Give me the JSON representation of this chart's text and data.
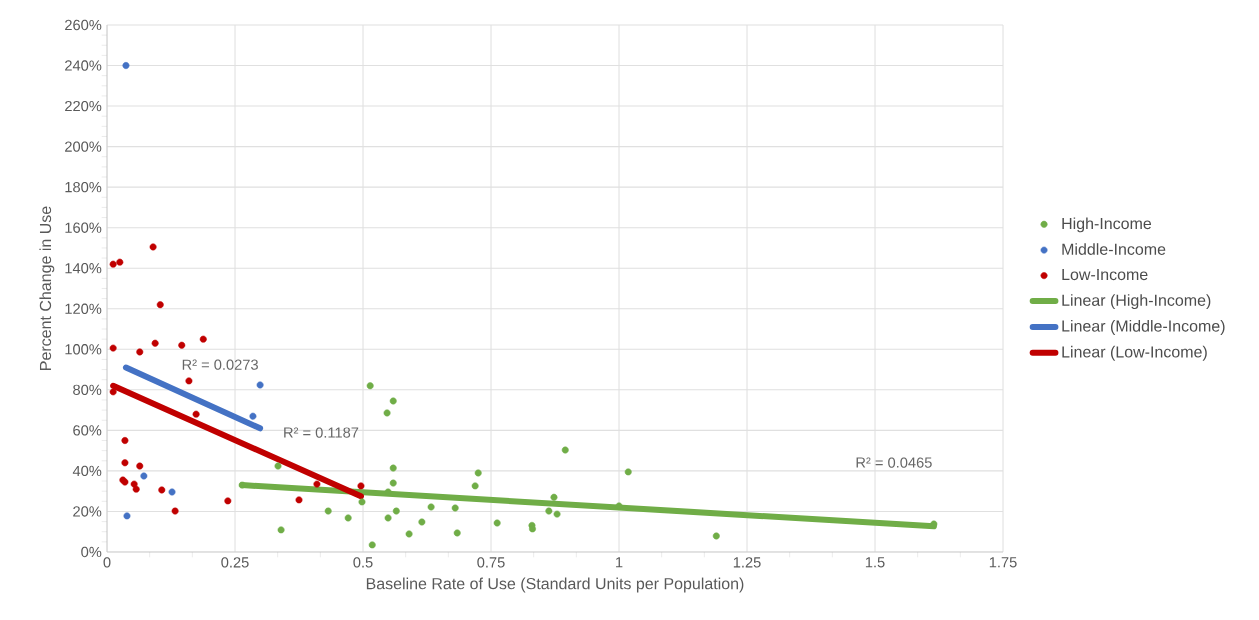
{
  "chart_data": {
    "type": "scatter",
    "xlabel": "Baseline Rate of Use (Standard Units per Population)",
    "ylabel": "Percent Change in Use",
    "xlim": [
      0,
      1.75
    ],
    "xticks": [
      0,
      0.25,
      0.5,
      0.75,
      1,
      1.25,
      1.5,
      1.75
    ],
    "ylim": [
      0,
      260
    ],
    "yticks": [
      {
        "value": 0,
        "label": "0%"
      },
      {
        "value": 20,
        "label": "20%"
      },
      {
        "value": 40,
        "label": "40%"
      },
      {
        "value": 60,
        "label": "60%"
      },
      {
        "value": 80,
        "label": "80%"
      },
      {
        "value": 100,
        "label": "100%"
      },
      {
        "value": 120,
        "label": "120%"
      },
      {
        "value": 140,
        "label": "140%"
      },
      {
        "value": 160,
        "label": "160%"
      },
      {
        "value": 180,
        "label": "180%"
      },
      {
        "value": 200,
        "label": "200%"
      },
      {
        "value": 220,
        "label": "220%"
      },
      {
        "value": 240,
        "label": "240%"
      },
      {
        "value": 260,
        "label": "260%"
      }
    ],
    "grid": true,
    "legend": "right",
    "series": [
      {
        "name": "High-Income",
        "marker": "circle",
        "color": "#70ad47",
        "x": [
          0.264,
          0.334,
          0.34,
          0.432,
          0.471,
          0.498,
          0.518,
          0.514,
          0.547,
          0.559,
          0.559,
          0.559,
          0.549,
          0.565,
          0.549,
          0.59,
          0.615,
          0.633,
          0.68,
          0.684,
          0.719,
          0.725,
          0.762,
          0.83,
          0.831,
          0.863,
          0.873,
          0.879,
          0.895,
          1.0,
          1.018,
          1.19,
          1.615
        ],
        "values": [
          33,
          42.4,
          10.9,
          20.2,
          16.8,
          24.7,
          3.5,
          82,
          68.6,
          74.5,
          41.4,
          34,
          16.8,
          20.2,
          29.6,
          8.9,
          14.8,
          22.2,
          21.7,
          9.4,
          32.6,
          39,
          14.3,
          13.1,
          11.4,
          20.2,
          27,
          18.7,
          50.3,
          22.7,
          39.5,
          7.9,
          13.8
        ]
      },
      {
        "name": "Middle-Income",
        "marker": "circle",
        "color": "#4472c4",
        "x": [
          0.037,
          0.039,
          0.072,
          0.127,
          0.285,
          0.299
        ],
        "values": [
          240,
          17.8,
          37.5,
          29.6,
          67,
          82.4
        ]
      },
      {
        "name": "Low-Income",
        "marker": "circle",
        "color": "#c00000",
        "x": [
          0.012,
          0.012,
          0.012,
          0.025,
          0.09,
          0.104,
          0.094,
          0.064,
          0.146,
          0.188,
          0.16,
          0.174,
          0.035,
          0.035,
          0.064,
          0.031,
          0.035,
          0.053,
          0.057,
          0.107,
          0.133,
          0.236,
          0.375,
          0.41,
          0.496
        ],
        "values": [
          79,
          100.6,
          142,
          143,
          150.5,
          122,
          103,
          98.7,
          102,
          105,
          84.4,
          68,
          55,
          44,
          42.4,
          35.5,
          34.5,
          33.5,
          31,
          30.6,
          20.2,
          25.2,
          25.7,
          33.5,
          32.6
        ]
      },
      {
        "name": "Linear (High-Income)",
        "type": "line",
        "marker": "none",
        "color": "#70ad47",
        "x": [
          0.264,
          1.615
        ],
        "values": [
          33,
          12.7
        ]
      },
      {
        "name": "Linear (Middle-Income)",
        "type": "line",
        "marker": "none",
        "color": "#4472c4",
        "x": [
          0.037,
          0.299
        ],
        "values": [
          91,
          61
        ]
      },
      {
        "name": "Linear (Low-Income)",
        "type": "line",
        "marker": "none",
        "color": "#c00000",
        "x": [
          0.012,
          0.496
        ],
        "values": [
          82,
          27.5
        ]
      }
    ],
    "annotations": [
      "R² = 0.0465",
      "R² = 0.0273",
      "R² = 0.1187"
    ]
  }
}
